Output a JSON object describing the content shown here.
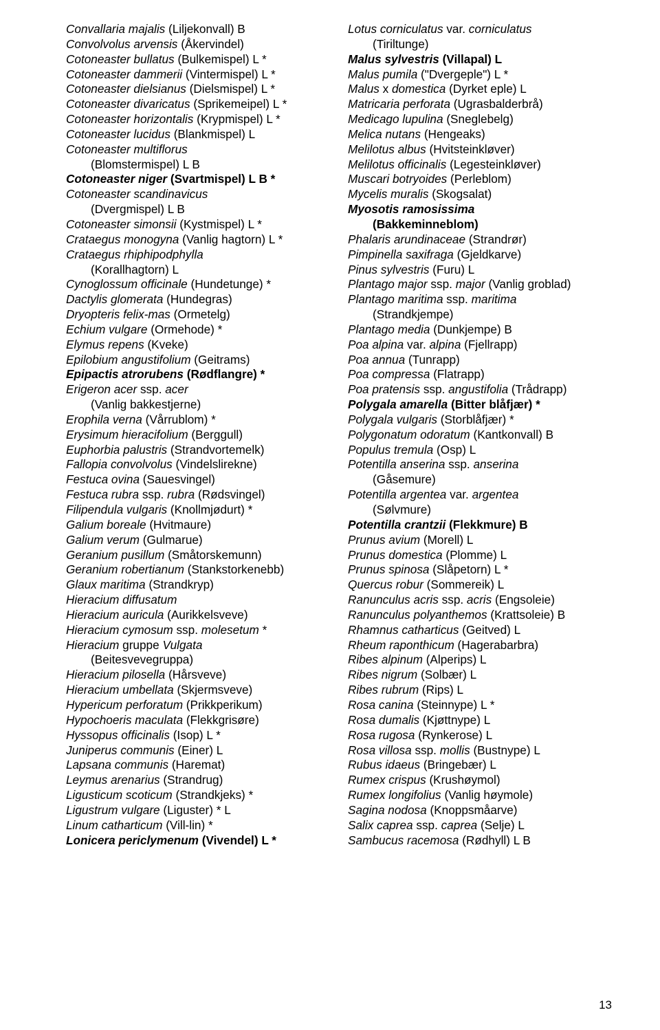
{
  "pageNumber": "13",
  "leftColumn": [
    {
      "segs": [
        {
          "t": "Convallaria majalis ",
          "i": true
        },
        {
          "t": "(Liljekonvall) B"
        }
      ]
    },
    {
      "segs": [
        {
          "t": "Convolvolus arvensis ",
          "i": true
        },
        {
          "t": "(Åkervindel)"
        }
      ]
    },
    {
      "segs": [
        {
          "t": "Cotoneaster bullatus ",
          "i": true
        },
        {
          "t": "(Bulkemispel) L *"
        }
      ]
    },
    {
      "segs": [
        {
          "t": "Cotoneaster dammerii ",
          "i": true
        },
        {
          "t": "(Vintermispel) L *"
        }
      ]
    },
    {
      "segs": [
        {
          "t": "Cotoneaster dielsianus ",
          "i": true
        },
        {
          "t": "(Dielsmispel) L *"
        }
      ]
    },
    {
      "segs": [
        {
          "t": "Cotoneaster divaricatus ",
          "i": true
        },
        {
          "t": "(Sprikemeipel) L *"
        }
      ]
    },
    {
      "segs": [
        {
          "t": "Cotoneaster horizontalis ",
          "i": true
        },
        {
          "t": "(Krypmispel) L *"
        }
      ]
    },
    {
      "segs": [
        {
          "t": "Cotoneaster lucidus ",
          "i": true
        },
        {
          "t": "(Blankmispel) L"
        }
      ]
    },
    {
      "segs": [
        {
          "t": "Cotoneaster multiflorus",
          "i": true
        }
      ]
    },
    {
      "indent": true,
      "segs": [
        {
          "t": "(Blomstermispel) L B"
        }
      ]
    },
    {
      "segs": [
        {
          "t": "Cotoneaster niger ",
          "i": true,
          "b": true
        },
        {
          "t": "(Svartmispel) L B *",
          "b": true
        }
      ]
    },
    {
      "segs": [
        {
          "t": "Cotoneaster scandinavicus",
          "i": true
        }
      ]
    },
    {
      "indent": true,
      "segs": [
        {
          "t": "(Dvergmispel) L B"
        }
      ]
    },
    {
      "segs": [
        {
          "t": "Cotoneaster simonsii ",
          "i": true
        },
        {
          "t": "(Kystmispel) L *"
        }
      ]
    },
    {
      "segs": [
        {
          "t": "Crataegus monogyna ",
          "i": true
        },
        {
          "t": "(Vanlig hagtorn) L *"
        }
      ]
    },
    {
      "segs": [
        {
          "t": "Crataegus rhiphipodphylla",
          "i": true
        }
      ]
    },
    {
      "indent": true,
      "segs": [
        {
          "t": "(Korallhagtorn) L"
        }
      ]
    },
    {
      "segs": [
        {
          "t": "Cynoglossum officinale ",
          "i": true
        },
        {
          "t": "(Hundetunge) *"
        }
      ]
    },
    {
      "segs": [
        {
          "t": "Dactylis glomerata ",
          "i": true
        },
        {
          "t": "(Hundegras)"
        }
      ]
    },
    {
      "segs": [
        {
          "t": "Dryopteris felix-mas ",
          "i": true
        },
        {
          "t": "(Ormetelg)"
        }
      ]
    },
    {
      "segs": [
        {
          "t": "Echium vulgare ",
          "i": true
        },
        {
          "t": "(Ormehode) *"
        }
      ]
    },
    {
      "segs": [
        {
          "t": "Elymus repens ",
          "i": true
        },
        {
          "t": "(Kveke)"
        }
      ]
    },
    {
      "segs": [
        {
          "t": "Epilobium angustifolium ",
          "i": true
        },
        {
          "t": "(Geitrams)"
        }
      ]
    },
    {
      "segs": [
        {
          "t": "Epipactis atrorubens ",
          "i": true,
          "b": true
        },
        {
          "t": "(Rødflangre) *",
          "b": true
        }
      ]
    },
    {
      "segs": [
        {
          "t": "Erigeron acer ",
          "i": true
        },
        {
          "t": "ssp. "
        },
        {
          "t": "acer",
          "i": true
        }
      ]
    },
    {
      "indent": true,
      "segs": [
        {
          "t": "(Vanlig bakkestjerne)"
        }
      ]
    },
    {
      "segs": [
        {
          "t": "Erophila verna ",
          "i": true
        },
        {
          "t": "(Vårrublom) *"
        }
      ]
    },
    {
      "segs": [
        {
          "t": "Erysimum hieracifolium ",
          "i": true
        },
        {
          "t": "(Berggull)"
        }
      ]
    },
    {
      "segs": [
        {
          "t": "Euphorbia palustris ",
          "i": true
        },
        {
          "t": "(Strandvortemelk)"
        }
      ]
    },
    {
      "segs": [
        {
          "t": "Fallopia convolvolus ",
          "i": true
        },
        {
          "t": "(Vindelslirekne)"
        }
      ]
    },
    {
      "segs": [
        {
          "t": "Festuca ovina ",
          "i": true
        },
        {
          "t": "(Sauesvingel)"
        }
      ]
    },
    {
      "segs": [
        {
          "t": "Festuca rubra ",
          "i": true
        },
        {
          "t": "ssp. "
        },
        {
          "t": "rubra ",
          "i": true
        },
        {
          "t": "(Rødsvingel)"
        }
      ]
    },
    {
      "segs": [
        {
          "t": "Filipendula vulgaris ",
          "i": true
        },
        {
          "t": "(Knollmjødurt) *"
        }
      ]
    },
    {
      "segs": [
        {
          "t": "Galium boreale ",
          "i": true
        },
        {
          "t": "(Hvitmaure)"
        }
      ]
    },
    {
      "segs": [
        {
          "t": "Galium verum ",
          "i": true
        },
        {
          "t": "(Gulmarue)"
        }
      ]
    },
    {
      "segs": [
        {
          "t": "Geranium pusillum ",
          "i": true
        },
        {
          "t": "(Småtorskemunn)"
        }
      ]
    },
    {
      "segs": [
        {
          "t": "Geranium robertianum ",
          "i": true
        },
        {
          "t": "(Stankstorkenebb)"
        }
      ]
    },
    {
      "segs": [
        {
          "t": "Glaux maritima ",
          "i": true
        },
        {
          "t": "(Strandkryp)"
        }
      ]
    },
    {
      "segs": [
        {
          "t": "Hieracium  diffusatum",
          "i": true
        }
      ]
    },
    {
      "segs": [
        {
          "t": "Hieracium auricula ",
          "i": true
        },
        {
          "t": "(Aurikkelsveve)"
        }
      ]
    },
    {
      "segs": [
        {
          "t": "Hieracium cymosum ",
          "i": true
        },
        {
          "t": "ssp. "
        },
        {
          "t": "molesetum ",
          "i": true
        },
        {
          "t": "*"
        }
      ]
    },
    {
      "segs": [
        {
          "t": "Hieracium ",
          "i": true
        },
        {
          "t": "gruppe "
        },
        {
          "t": "Vulgata",
          "i": true
        }
      ]
    },
    {
      "indent": true,
      "segs": [
        {
          "t": "(Beitesvevegruppa)"
        }
      ]
    },
    {
      "segs": [
        {
          "t": "Hieracium pilosella ",
          "i": true
        },
        {
          "t": "(Hårsveve)"
        }
      ]
    },
    {
      "segs": [
        {
          "t": "Hieracium umbellata ",
          "i": true
        },
        {
          "t": "(Skjermsveve)"
        }
      ]
    },
    {
      "segs": [
        {
          "t": "Hypericum perforatum ",
          "i": true
        },
        {
          "t": "(Prikkperikum)"
        }
      ]
    },
    {
      "segs": [
        {
          "t": "Hypochoeris maculata ",
          "i": true
        },
        {
          "t": "(Flekkgrisøre)"
        }
      ]
    },
    {
      "segs": [
        {
          "t": "Hyssopus officinalis ",
          "i": true
        },
        {
          "t": "(Isop) L *"
        }
      ]
    },
    {
      "segs": [
        {
          "t": "Juniperus communis ",
          "i": true
        },
        {
          "t": "(Einer) L"
        }
      ]
    },
    {
      "segs": [
        {
          "t": "Lapsana communis ",
          "i": true
        },
        {
          "t": "(Haremat)"
        }
      ]
    },
    {
      "segs": [
        {
          "t": "Leymus arenarius ",
          "i": true
        },
        {
          "t": "(Strandrug)"
        }
      ]
    },
    {
      "segs": [
        {
          "t": "Ligusticum scoticum ",
          "i": true
        },
        {
          "t": "(Strandkjeks) *"
        }
      ]
    },
    {
      "segs": [
        {
          "t": "Ligustrum vulgare ",
          "i": true
        },
        {
          "t": "(Liguster) * L"
        }
      ]
    },
    {
      "segs": [
        {
          "t": "Linum catharticum ",
          "i": true
        },
        {
          "t": "(Vill-lin) *"
        }
      ]
    },
    {
      "segs": [
        {
          "t": "Lonicera periclymenum ",
          "i": true,
          "b": true
        },
        {
          "t": "(Vivendel) L *",
          "b": true
        }
      ]
    }
  ],
  "rightColumn": [
    {
      "segs": [
        {
          "t": "Lotus corniculatus ",
          "i": true
        },
        {
          "t": "var. "
        },
        {
          "t": "corniculatus",
          "i": true
        }
      ]
    },
    {
      "indent": true,
      "segs": [
        {
          "t": "(Tiriltunge)"
        }
      ]
    },
    {
      "segs": [
        {
          "t": "Malus sylvestris ",
          "i": true,
          "b": true
        },
        {
          "t": "(Villapal) L",
          "b": true
        }
      ]
    },
    {
      "segs": [
        {
          "t": "Malus pumila ",
          "i": true
        },
        {
          "t": "(\"Dvergeple\") L *"
        }
      ]
    },
    {
      "segs": [
        {
          "t": "Malus ",
          "i": true
        },
        {
          "t": "x "
        },
        {
          "t": "domestica ",
          "i": true
        },
        {
          "t": "(Dyrket eple) L"
        }
      ]
    },
    {
      "segs": [
        {
          "t": "Matricaria perforata ",
          "i": true
        },
        {
          "t": "(Ugrasbalderbrå)"
        }
      ]
    },
    {
      "segs": [
        {
          "t": "Medicago lupulina ",
          "i": true
        },
        {
          "t": "(Sneglebelg)"
        }
      ]
    },
    {
      "segs": [
        {
          "t": "Melica nutans ",
          "i": true
        },
        {
          "t": "(Hengeaks)"
        }
      ]
    },
    {
      "segs": [
        {
          "t": "Melilotus albus ",
          "i": true
        },
        {
          "t": "(Hvitsteinkløver)"
        }
      ]
    },
    {
      "segs": [
        {
          "t": "Melilotus officinalis ",
          "i": true
        },
        {
          "t": "(Legesteinkløver)"
        }
      ]
    },
    {
      "segs": [
        {
          "t": "Muscari botryoides ",
          "i": true
        },
        {
          "t": "(Perleblom)"
        }
      ]
    },
    {
      "segs": [
        {
          "t": "Mycelis muralis ",
          "i": true
        },
        {
          "t": "(Skogsalat)"
        }
      ]
    },
    {
      "segs": [
        {
          "t": "Myosotis ramosissima",
          "i": true,
          "b": true
        }
      ]
    },
    {
      "indent": true,
      "segs": [
        {
          "t": "(Bakkeminneblom)",
          "b": true
        }
      ]
    },
    {
      "segs": [
        {
          "t": "Phalaris arundinaceae ",
          "i": true
        },
        {
          "t": "(Strandrør)"
        }
      ]
    },
    {
      "segs": [
        {
          "t": "Pimpinella saxifraga ",
          "i": true
        },
        {
          "t": "(Gjeldkarve)"
        }
      ]
    },
    {
      "segs": [
        {
          "t": "Pinus sylvestris ",
          "i": true
        },
        {
          "t": "(Furu) L"
        }
      ]
    },
    {
      "segs": [
        {
          "t": "Plantago major ",
          "i": true
        },
        {
          "t": "ssp. "
        },
        {
          "t": "major ",
          "i": true
        },
        {
          "t": "(Vanlig groblad)"
        }
      ]
    },
    {
      "segs": [
        {
          "t": "Plantago maritima ",
          "i": true
        },
        {
          "t": "ssp. "
        },
        {
          "t": "maritima",
          "i": true
        }
      ]
    },
    {
      "indent": true,
      "segs": [
        {
          "t": "(Strandkjempe)"
        }
      ]
    },
    {
      "segs": [
        {
          "t": "Plantago media ",
          "i": true
        },
        {
          "t": "(Dunkjempe) B"
        }
      ]
    },
    {
      "segs": [
        {
          "t": "Poa alpina ",
          "i": true
        },
        {
          "t": "var. "
        },
        {
          "t": "alpina ",
          "i": true
        },
        {
          "t": "(Fjellrapp)"
        }
      ]
    },
    {
      "segs": [
        {
          "t": "Poa annua ",
          "i": true
        },
        {
          "t": "(Tunrapp)"
        }
      ]
    },
    {
      "segs": [
        {
          "t": "Poa compressa ",
          "i": true
        },
        {
          "t": "(Flatrapp)"
        }
      ]
    },
    {
      "segs": [
        {
          "t": "Poa pratensis ",
          "i": true
        },
        {
          "t": "ssp. "
        },
        {
          "t": "angustifolia ",
          "i": true
        },
        {
          "t": "(Trådrapp)"
        }
      ]
    },
    {
      "segs": [
        {
          "t": "Polygala amarella ",
          "i": true,
          "b": true
        },
        {
          "t": "(Bitter blåfjær) *",
          "b": true
        }
      ]
    },
    {
      "segs": [
        {
          "t": "Polygala vulgaris ",
          "i": true
        },
        {
          "t": "(Storblåfjær) *"
        }
      ]
    },
    {
      "segs": [
        {
          "t": "Polygonatum odoratum ",
          "i": true
        },
        {
          "t": "(Kantkonvall) B"
        }
      ]
    },
    {
      "segs": [
        {
          "t": "Populus tremula ",
          "i": true
        },
        {
          "t": "(Osp) L"
        }
      ]
    },
    {
      "segs": [
        {
          "t": "Potentilla anserina ",
          "i": true
        },
        {
          "t": "ssp. "
        },
        {
          "t": "anserina",
          "i": true
        }
      ]
    },
    {
      "indent": true,
      "segs": [
        {
          "t": "(Gåsemure)"
        }
      ]
    },
    {
      "segs": [
        {
          "t": "Potentilla argentea ",
          "i": true
        },
        {
          "t": "var. "
        },
        {
          "t": "argentea",
          "i": true
        }
      ]
    },
    {
      "indent": true,
      "segs": [
        {
          "t": "(Sølvmure)"
        }
      ]
    },
    {
      "segs": [
        {
          "t": "Potentilla crantzii ",
          "i": true,
          "b": true
        },
        {
          "t": "(Flekkmure) B",
          "b": true
        }
      ]
    },
    {
      "segs": [
        {
          "t": "Prunus avium ",
          "i": true
        },
        {
          "t": "(Morell) L"
        }
      ]
    },
    {
      "segs": [
        {
          "t": "Prunus domestica ",
          "i": true
        },
        {
          "t": "(Plomme) L"
        }
      ]
    },
    {
      "segs": [
        {
          "t": "Prunus spinosa ",
          "i": true
        },
        {
          "t": "(Slåpetorn) L *"
        }
      ]
    },
    {
      "segs": [
        {
          "t": "Quercus robur ",
          "i": true
        },
        {
          "t": "(Sommereik) L"
        }
      ]
    },
    {
      "segs": [
        {
          "t": "Ranunculus acris ",
          "i": true
        },
        {
          "t": "ssp. "
        },
        {
          "t": "acris ",
          "i": true
        },
        {
          "t": "(Engsoleie)"
        }
      ]
    },
    {
      "segs": [
        {
          "t": "Ranunculus polyanthemos ",
          "i": true
        },
        {
          "t": "(Krattsoleie) B"
        }
      ]
    },
    {
      "segs": [
        {
          "t": "Rhamnus catharticus ",
          "i": true
        },
        {
          "t": "(Geitved) L"
        }
      ]
    },
    {
      "segs": [
        {
          "t": "Rheum raponthicum ",
          "i": true
        },
        {
          "t": "(Hagerabarbra)"
        }
      ]
    },
    {
      "segs": [
        {
          "t": "Ribes alpinum ",
          "i": true
        },
        {
          "t": "(Alperips) L"
        }
      ]
    },
    {
      "segs": [
        {
          "t": "Ribes nigrum ",
          "i": true
        },
        {
          "t": "(Solbær) L"
        }
      ]
    },
    {
      "segs": [
        {
          "t": "Ribes rubrum ",
          "i": true
        },
        {
          "t": "(Rips) L"
        }
      ]
    },
    {
      "segs": [
        {
          "t": "Rosa canina ",
          "i": true
        },
        {
          "t": "(Steinnype) L *"
        }
      ]
    },
    {
      "segs": [
        {
          "t": "Rosa dumalis ",
          "i": true
        },
        {
          "t": "(Kjøttnype) L"
        }
      ]
    },
    {
      "segs": [
        {
          "t": "Rosa rugosa ",
          "i": true
        },
        {
          "t": "(Rynkerose) L"
        }
      ]
    },
    {
      "segs": [
        {
          "t": "Rosa villosa ",
          "i": true
        },
        {
          "t": "ssp. "
        },
        {
          "t": "mollis ",
          "i": true
        },
        {
          "t": "(Bustnype) L"
        }
      ]
    },
    {
      "segs": [
        {
          "t": "Rubus idaeus ",
          "i": true
        },
        {
          "t": "(Bringebær) L"
        }
      ]
    },
    {
      "segs": [
        {
          "t": "Rumex crispus ",
          "i": true
        },
        {
          "t": "(Krushøymol)"
        }
      ]
    },
    {
      "segs": [
        {
          "t": "Rumex longifolius ",
          "i": true
        },
        {
          "t": "(Vanlig høymole)"
        }
      ]
    },
    {
      "segs": [
        {
          "t": "Sagina nodosa ",
          "i": true
        },
        {
          "t": "(Knoppsmåarve)"
        }
      ]
    },
    {
      "segs": [
        {
          "t": "Salix caprea ",
          "i": true
        },
        {
          "t": "ssp. "
        },
        {
          "t": "caprea ",
          "i": true
        },
        {
          "t": "(Selje) L"
        }
      ]
    },
    {
      "segs": [
        {
          "t": "Sambucus racemosa ",
          "i": true
        },
        {
          "t": "(Rødhyll) L B"
        }
      ]
    }
  ]
}
